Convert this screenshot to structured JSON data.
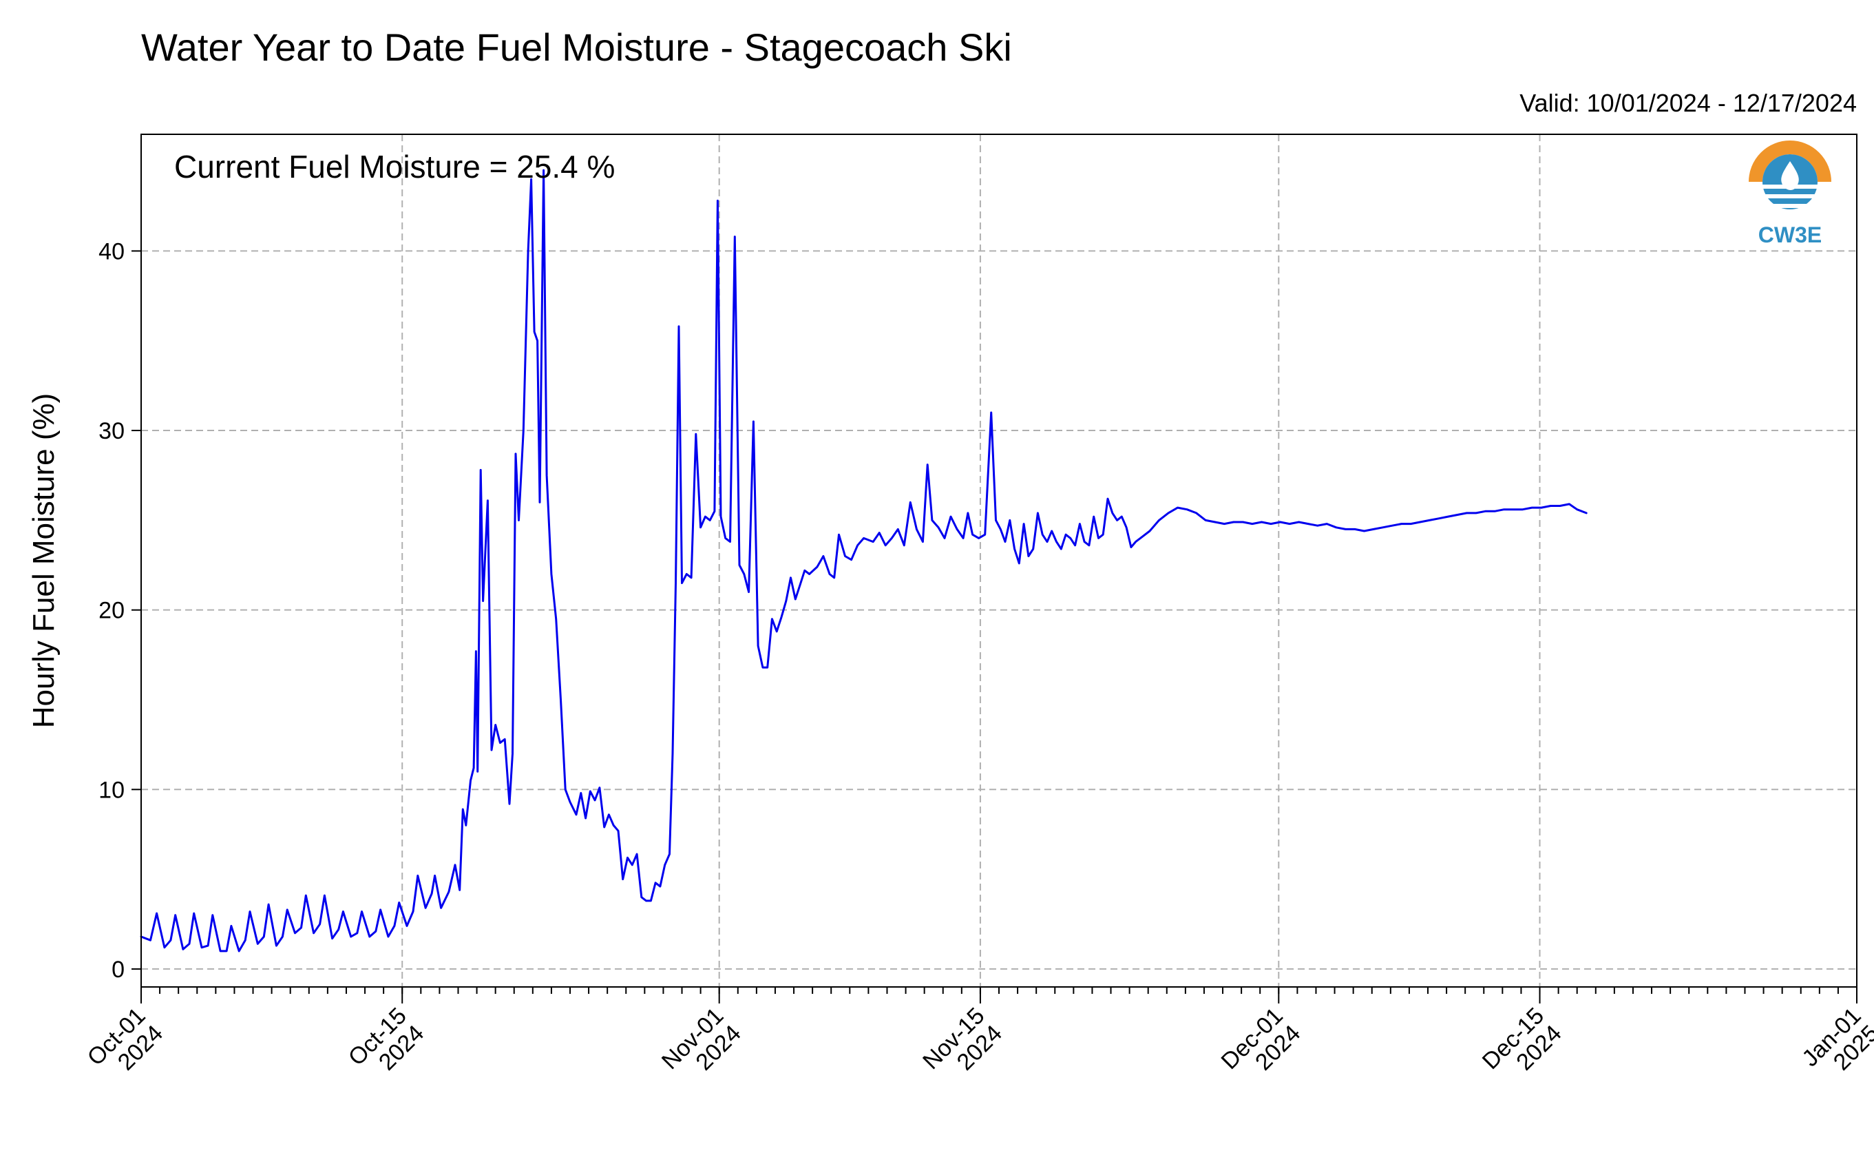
{
  "colors": {
    "series": "#0000ee",
    "logo_orange": "#f0952a",
    "logo_blue": "#2f8fc4"
  },
  "logo": {
    "text": "CW3E",
    "icon": "cw3e-logo-icon"
  },
  "chart_data": {
    "type": "line",
    "title": "Water Year to Date Fuel Moisture - Stagecoach Ski",
    "subtitle": "Valid: 10/01/2024 - 12/17/2024",
    "annotation": "Current Fuel Moisture = 25.4 %",
    "xlabel": "",
    "ylabel": "Hourly Fuel Moisture (%)",
    "xlim": [
      "2024-10-01",
      "2025-01-01"
    ],
    "ylim": [
      -1,
      46.5
    ],
    "grid": true,
    "legend": "none",
    "x_ticks": [
      {
        "date": "2024-10-01",
        "label_top": "Oct-01",
        "label_bottom": "2024"
      },
      {
        "date": "2024-10-15",
        "label_top": "Oct-15",
        "label_bottom": "2024"
      },
      {
        "date": "2024-11-01",
        "label_top": "Nov-01",
        "label_bottom": "2024"
      },
      {
        "date": "2024-11-15",
        "label_top": "Nov-15",
        "label_bottom": "2024"
      },
      {
        "date": "2024-12-01",
        "label_top": "Dec-01",
        "label_bottom": "2024"
      },
      {
        "date": "2024-12-15",
        "label_top": "Dec-15",
        "label_bottom": "2024"
      },
      {
        "date": "2025-01-01",
        "label_top": "Jan-01",
        "label_bottom": "2025"
      }
    ],
    "y_ticks": [
      0,
      10,
      20,
      30,
      40
    ],
    "series": [
      {
        "color": "#0000ee",
        "points": [
          [
            "2024-10-01 00:00",
            1.8
          ],
          [
            "2024-10-01 12:00",
            1.6
          ],
          [
            "2024-10-01 20:00",
            3.1
          ],
          [
            "2024-10-02 06:00",
            1.2
          ],
          [
            "2024-10-02 14:00",
            1.6
          ],
          [
            "2024-10-02 20:00",
            3.0
          ],
          [
            "2024-10-03 06:00",
            1.1
          ],
          [
            "2024-10-03 14:00",
            1.4
          ],
          [
            "2024-10-03 20:00",
            3.1
          ],
          [
            "2024-10-04 06:00",
            1.2
          ],
          [
            "2024-10-04 14:00",
            1.3
          ],
          [
            "2024-10-04 20:00",
            3.0
          ],
          [
            "2024-10-05 06:00",
            1.0
          ],
          [
            "2024-10-05 14:00",
            1.0
          ],
          [
            "2024-10-05 20:00",
            2.4
          ],
          [
            "2024-10-06 06:00",
            1.0
          ],
          [
            "2024-10-06 14:00",
            1.6
          ],
          [
            "2024-10-06 20:00",
            3.2
          ],
          [
            "2024-10-07 06:00",
            1.4
          ],
          [
            "2024-10-07 14:00",
            1.8
          ],
          [
            "2024-10-07 20:00",
            3.6
          ],
          [
            "2024-10-08 06:00",
            1.3
          ],
          [
            "2024-10-08 14:00",
            1.8
          ],
          [
            "2024-10-08 20:00",
            3.3
          ],
          [
            "2024-10-09 06:00",
            2.0
          ],
          [
            "2024-10-09 14:00",
            2.3
          ],
          [
            "2024-10-09 20:00",
            4.1
          ],
          [
            "2024-10-10 06:00",
            2.0
          ],
          [
            "2024-10-10 14:00",
            2.5
          ],
          [
            "2024-10-10 20:00",
            4.1
          ],
          [
            "2024-10-11 06:00",
            1.7
          ],
          [
            "2024-10-11 14:00",
            2.2
          ],
          [
            "2024-10-11 20:00",
            3.2
          ],
          [
            "2024-10-12 06:00",
            1.8
          ],
          [
            "2024-10-12 14:00",
            2.0
          ],
          [
            "2024-10-12 20:00",
            3.2
          ],
          [
            "2024-10-13 06:00",
            1.8
          ],
          [
            "2024-10-13 14:00",
            2.1
          ],
          [
            "2024-10-13 20:00",
            3.3
          ],
          [
            "2024-10-14 06:00",
            1.8
          ],
          [
            "2024-10-14 14:00",
            2.4
          ],
          [
            "2024-10-14 20:00",
            3.7
          ],
          [
            "2024-10-15 06:00",
            2.4
          ],
          [
            "2024-10-15 14:00",
            3.2
          ],
          [
            "2024-10-15 20:00",
            5.2
          ],
          [
            "2024-10-16 06:00",
            3.4
          ],
          [
            "2024-10-16 14:00",
            4.2
          ],
          [
            "2024-10-16 18:00",
            5.2
          ],
          [
            "2024-10-17 02:00",
            3.4
          ],
          [
            "2024-10-17 12:00",
            4.3
          ],
          [
            "2024-10-17 20:00",
            5.8
          ],
          [
            "2024-10-18 02:00",
            4.4
          ],
          [
            "2024-10-18 06:00",
            8.9
          ],
          [
            "2024-10-18 10:00",
            8.0
          ],
          [
            "2024-10-18 16:00",
            10.5
          ],
          [
            "2024-10-18 20:00",
            11.2
          ],
          [
            "2024-10-18 23:00",
            17.7
          ],
          [
            "2024-10-19 01:00",
            11.0
          ],
          [
            "2024-10-19 05:00",
            27.8
          ],
          [
            "2024-10-19 08:00",
            20.5
          ],
          [
            "2024-10-19 14:00",
            26.1
          ],
          [
            "2024-10-19 19:00",
            12.2
          ],
          [
            "2024-10-20 00:00",
            13.6
          ],
          [
            "2024-10-20 06:00",
            12.6
          ],
          [
            "2024-10-20 12:00",
            12.8
          ],
          [
            "2024-10-20 18:00",
            9.2
          ],
          [
            "2024-10-20 22:00",
            12.0
          ],
          [
            "2024-10-21 02:00",
            28.7
          ],
          [
            "2024-10-21 06:00",
            25.0
          ],
          [
            "2024-10-21 12:00",
            30.0
          ],
          [
            "2024-10-21 18:00",
            40.0
          ],
          [
            "2024-10-21 22:00",
            44.0
          ],
          [
            "2024-10-22 02:00",
            35.5
          ],
          [
            "2024-10-22 06:00",
            35.0
          ],
          [
            "2024-10-22 09:00",
            26.0
          ],
          [
            "2024-10-22 14:00",
            44.5
          ],
          [
            "2024-10-22 18:00",
            27.5
          ],
          [
            "2024-10-23 00:00",
            22.0
          ],
          [
            "2024-10-23 06:00",
            19.5
          ],
          [
            "2024-10-23 12:00",
            15.0
          ],
          [
            "2024-10-23 18:00",
            10.0
          ],
          [
            "2024-10-24 00:00",
            9.3
          ],
          [
            "2024-10-24 08:00",
            8.6
          ],
          [
            "2024-10-24 14:00",
            9.8
          ],
          [
            "2024-10-24 20:00",
            8.4
          ],
          [
            "2024-10-25 02:00",
            9.9
          ],
          [
            "2024-10-25 08:00",
            9.4
          ],
          [
            "2024-10-25 14:00",
            10.1
          ],
          [
            "2024-10-25 20:00",
            7.9
          ],
          [
            "2024-10-26 02:00",
            8.6
          ],
          [
            "2024-10-26 08:00",
            8.0
          ],
          [
            "2024-10-26 14:00",
            7.7
          ],
          [
            "2024-10-26 20:00",
            5.0
          ],
          [
            "2024-10-27 02:00",
            6.2
          ],
          [
            "2024-10-27 08:00",
            5.8
          ],
          [
            "2024-10-27 14:00",
            6.4
          ],
          [
            "2024-10-27 20:00",
            4.0
          ],
          [
            "2024-10-28 02:00",
            3.8
          ],
          [
            "2024-10-28 08:00",
            3.8
          ],
          [
            "2024-10-28 14:00",
            4.8
          ],
          [
            "2024-10-28 20:00",
            4.6
          ],
          [
            "2024-10-29 02:00",
            5.8
          ],
          [
            "2024-10-29 08:00",
            6.4
          ],
          [
            "2024-10-29 12:00",
            12.0
          ],
          [
            "2024-10-29 16:00",
            21.5
          ],
          [
            "2024-10-29 20:00",
            35.8
          ],
          [
            "2024-10-30 00:00",
            21.5
          ],
          [
            "2024-10-30 06:00",
            22.0
          ],
          [
            "2024-10-30 12:00",
            21.8
          ],
          [
            "2024-10-30 18:00",
            29.8
          ],
          [
            "2024-10-31 00:00",
            24.6
          ],
          [
            "2024-10-31 06:00",
            25.2
          ],
          [
            "2024-10-31 12:00",
            25.0
          ],
          [
            "2024-10-31 18:00",
            25.5
          ],
          [
            "2024-10-31 22:00",
            42.8
          ],
          [
            "2024-11-01 02:00",
            25.2
          ],
          [
            "2024-11-01 08:00",
            24.0
          ],
          [
            "2024-11-01 14:00",
            23.8
          ],
          [
            "2024-11-01 20:00",
            40.8
          ],
          [
            "2024-11-02 02:00",
            22.5
          ],
          [
            "2024-11-02 08:00",
            22.0
          ],
          [
            "2024-11-02 14:00",
            21.0
          ],
          [
            "2024-11-02 20:00",
            30.5
          ],
          [
            "2024-11-03 02:00",
            18.0
          ],
          [
            "2024-11-03 08:00",
            16.8
          ],
          [
            "2024-11-03 14:00",
            16.8
          ],
          [
            "2024-11-03 20:00",
            19.5
          ],
          [
            "2024-11-04 02:00",
            18.8
          ],
          [
            "2024-11-04 08:00",
            19.6
          ],
          [
            "2024-11-04 14:00",
            20.5
          ],
          [
            "2024-11-04 20:00",
            21.8
          ],
          [
            "2024-11-05 02:00",
            20.6
          ],
          [
            "2024-11-05 08:00",
            21.4
          ],
          [
            "2024-11-05 14:00",
            22.2
          ],
          [
            "2024-11-05 20:00",
            22.0
          ],
          [
            "2024-11-06 06:00",
            22.4
          ],
          [
            "2024-11-06 14:00",
            23.0
          ],
          [
            "2024-11-06 22:00",
            22.0
          ],
          [
            "2024-11-07 04:00",
            21.8
          ],
          [
            "2024-11-07 10:00",
            24.2
          ],
          [
            "2024-11-07 18:00",
            23.0
          ],
          [
            "2024-11-08 02:00",
            22.8
          ],
          [
            "2024-11-08 10:00",
            23.6
          ],
          [
            "2024-11-08 18:00",
            24.0
          ],
          [
            "2024-11-09 06:00",
            23.8
          ],
          [
            "2024-11-09 14:00",
            24.3
          ],
          [
            "2024-11-09 22:00",
            23.6
          ],
          [
            "2024-11-10 06:00",
            24.0
          ],
          [
            "2024-11-10 14:00",
            24.5
          ],
          [
            "2024-11-10 22:00",
            23.6
          ],
          [
            "2024-11-11 06:00",
            26.0
          ],
          [
            "2024-11-11 14:00",
            24.5
          ],
          [
            "2024-11-11 22:00",
            23.8
          ],
          [
            "2024-11-12 04:00",
            28.1
          ],
          [
            "2024-11-12 10:00",
            25.0
          ],
          [
            "2024-11-12 18:00",
            24.6
          ],
          [
            "2024-11-13 02:00",
            24.0
          ],
          [
            "2024-11-13 10:00",
            25.2
          ],
          [
            "2024-11-13 18:00",
            24.5
          ],
          [
            "2024-11-14 02:00",
            24.0
          ],
          [
            "2024-11-14 08:00",
            25.4
          ],
          [
            "2024-11-14 14:00",
            24.2
          ],
          [
            "2024-11-14 22:00",
            24.0
          ],
          [
            "2024-11-15 06:00",
            24.2
          ],
          [
            "2024-11-15 14:00",
            31.0
          ],
          [
            "2024-11-15 20:00",
            25.0
          ],
          [
            "2024-11-16 02:00",
            24.5
          ],
          [
            "2024-11-16 08:00",
            23.8
          ],
          [
            "2024-11-16 14:00",
            25.0
          ],
          [
            "2024-11-16 20:00",
            23.4
          ],
          [
            "2024-11-17 02:00",
            22.6
          ],
          [
            "2024-11-17 08:00",
            24.8
          ],
          [
            "2024-11-17 14:00",
            23.0
          ],
          [
            "2024-11-17 20:00",
            23.4
          ],
          [
            "2024-11-18 02:00",
            25.4
          ],
          [
            "2024-11-18 08:00",
            24.2
          ],
          [
            "2024-11-18 14:00",
            23.8
          ],
          [
            "2024-11-18 20:00",
            24.4
          ],
          [
            "2024-11-19 02:00",
            23.8
          ],
          [
            "2024-11-19 08:00",
            23.4
          ],
          [
            "2024-11-19 14:00",
            24.2
          ],
          [
            "2024-11-19 20:00",
            24.0
          ],
          [
            "2024-11-20 02:00",
            23.6
          ],
          [
            "2024-11-20 08:00",
            24.8
          ],
          [
            "2024-11-20 14:00",
            23.8
          ],
          [
            "2024-11-20 20:00",
            23.6
          ],
          [
            "2024-11-21 02:00",
            25.2
          ],
          [
            "2024-11-21 08:00",
            24.0
          ],
          [
            "2024-11-21 14:00",
            24.2
          ],
          [
            "2024-11-21 20:00",
            26.2
          ],
          [
            "2024-11-22 02:00",
            25.4
          ],
          [
            "2024-11-22 08:00",
            25.0
          ],
          [
            "2024-11-22 14:00",
            25.2
          ],
          [
            "2024-11-22 20:00",
            24.6
          ],
          [
            "2024-11-23 02:00",
            23.5
          ],
          [
            "2024-11-23 08:00",
            23.8
          ],
          [
            "2024-11-23 14:00",
            24.0
          ],
          [
            "2024-11-24 02:00",
            24.4
          ],
          [
            "2024-11-24 14:00",
            25.0
          ],
          [
            "2024-11-25 02:00",
            25.4
          ],
          [
            "2024-11-25 14:00",
            25.7
          ],
          [
            "2024-11-26 02:00",
            25.6
          ],
          [
            "2024-11-26 14:00",
            25.4
          ],
          [
            "2024-11-27 02:00",
            25.0
          ],
          [
            "2024-11-27 14:00",
            24.9
          ],
          [
            "2024-11-28 02:00",
            24.8
          ],
          [
            "2024-11-28 14:00",
            24.9
          ],
          [
            "2024-11-29 02:00",
            24.9
          ],
          [
            "2024-11-29 14:00",
            24.8
          ],
          [
            "2024-11-30 02:00",
            24.9
          ],
          [
            "2024-11-30 14:00",
            24.8
          ],
          [
            "2024-12-01 02:00",
            24.9
          ],
          [
            "2024-12-01 14:00",
            24.8
          ],
          [
            "2024-12-02 02:00",
            24.9
          ],
          [
            "2024-12-02 14:00",
            24.8
          ],
          [
            "2024-12-03 02:00",
            24.7
          ],
          [
            "2024-12-03 14:00",
            24.8
          ],
          [
            "2024-12-04 02:00",
            24.6
          ],
          [
            "2024-12-04 14:00",
            24.5
          ],
          [
            "2024-12-05 02:00",
            24.5
          ],
          [
            "2024-12-05 14:00",
            24.4
          ],
          [
            "2024-12-06 02:00",
            24.5
          ],
          [
            "2024-12-06 14:00",
            24.6
          ],
          [
            "2024-12-07 02:00",
            24.7
          ],
          [
            "2024-12-07 14:00",
            24.8
          ],
          [
            "2024-12-08 02:00",
            24.8
          ],
          [
            "2024-12-08 14:00",
            24.9
          ],
          [
            "2024-12-09 02:00",
            25.0
          ],
          [
            "2024-12-09 14:00",
            25.1
          ],
          [
            "2024-12-10 02:00",
            25.2
          ],
          [
            "2024-12-10 14:00",
            25.3
          ],
          [
            "2024-12-11 02:00",
            25.4
          ],
          [
            "2024-12-11 14:00",
            25.4
          ],
          [
            "2024-12-12 02:00",
            25.5
          ],
          [
            "2024-12-12 14:00",
            25.5
          ],
          [
            "2024-12-13 02:00",
            25.6
          ],
          [
            "2024-12-13 14:00",
            25.6
          ],
          [
            "2024-12-14 02:00",
            25.6
          ],
          [
            "2024-12-14 14:00",
            25.7
          ],
          [
            "2024-12-15 02:00",
            25.7
          ],
          [
            "2024-12-15 14:00",
            25.8
          ],
          [
            "2024-12-16 02:00",
            25.8
          ],
          [
            "2024-12-16 14:00",
            25.9
          ],
          [
            "2024-12-17 00:00",
            25.6
          ],
          [
            "2024-12-17 12:00",
            25.4
          ]
        ]
      }
    ]
  }
}
